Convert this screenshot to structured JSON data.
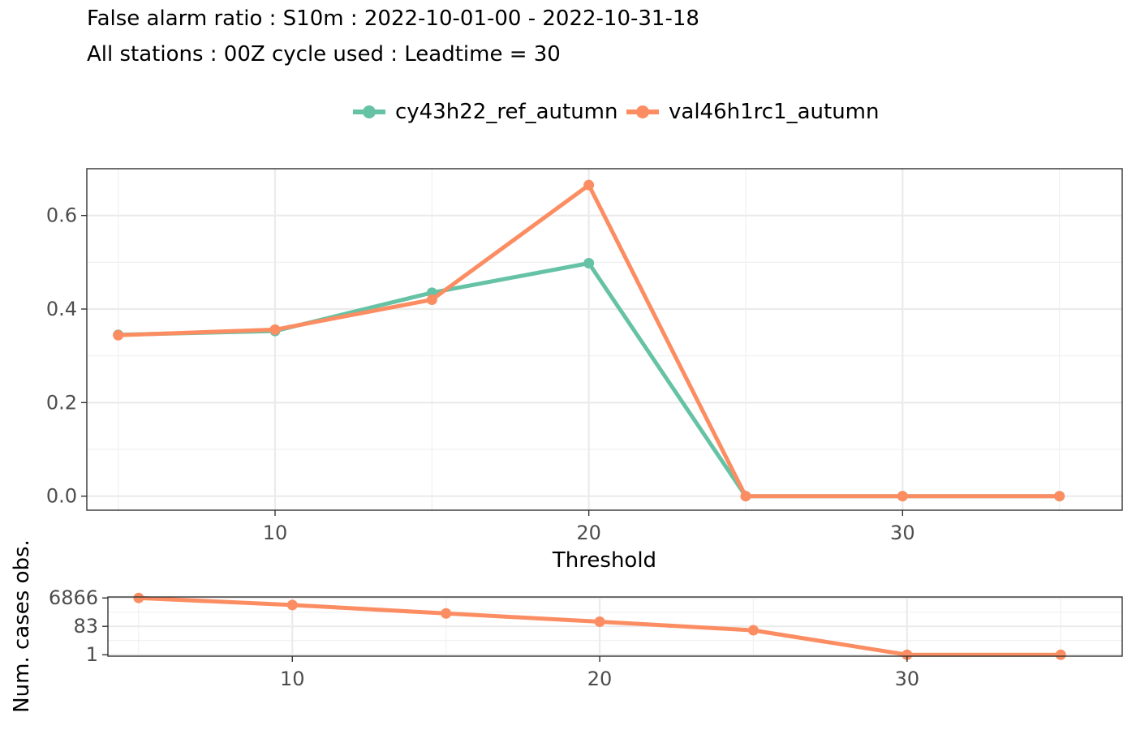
{
  "header": {
    "title": "False alarm ratio : S10m : 2022-10-01-00 - 2022-10-31-18",
    "subtitle": "All stations : 00Z cycle used : Leadtime = 30"
  },
  "legend": [
    {
      "name": "cy43h22_ref_autumn",
      "color": "#66C2A5"
    },
    {
      "name": "val46h1rc1_autumn",
      "color": "#FC8D62"
    }
  ],
  "chart_data": [
    {
      "type": "line",
      "title": "False alarm ratio : S10m : 2022-10-01-00 - 2022-10-31-18",
      "subtitle": "All stations : 00Z cycle used : Leadtime = 30",
      "xlabel": "Threshold",
      "ylabel": "",
      "xlim": [
        4,
        37
      ],
      "ylim": [
        -0.03,
        0.7
      ],
      "xticks": [
        10,
        20,
        30
      ],
      "xtick_labels": [
        "10",
        "20",
        "30"
      ],
      "yticks": [
        0,
        0.2,
        0.4,
        0.6
      ],
      "ytick_labels": [
        "0.0",
        "0.2",
        "0.4",
        "0.6"
      ],
      "grid": true,
      "legend_position": "top",
      "x": [
        5,
        10,
        15,
        20,
        25,
        30,
        35
      ],
      "series": [
        {
          "name": "cy43h22_ref_autumn",
          "color": "#66C2A5",
          "values": [
            0.345,
            0.353,
            0.435,
            0.498,
            0.0,
            0.0,
            0.0
          ]
        },
        {
          "name": "val46h1rc1_autumn",
          "color": "#FC8D62",
          "values": [
            0.344,
            0.356,
            0.42,
            0.665,
            0.0,
            0.0,
            0.0
          ]
        }
      ]
    },
    {
      "type": "line",
      "xlabel": "",
      "ylabel": "Num. cases obs.",
      "scale_y": "log",
      "xlim": [
        4,
        37
      ],
      "ylim": [
        0.8,
        8000
      ],
      "xticks": [
        10,
        20,
        30
      ],
      "xtick_labels": [
        "10",
        "20",
        "30"
      ],
      "yticks": [
        1,
        83,
        6866
      ],
      "ytick_labels": [
        "1",
        "83",
        "6866"
      ],
      "grid": true,
      "x": [
        5,
        10,
        15,
        20,
        25,
        30,
        35
      ],
      "series": [
        {
          "name": "val46h1rc1_autumn",
          "color": "#FC8D62",
          "values": [
            6866,
            2300,
            620,
            170,
            45,
            1,
            1
          ]
        }
      ]
    }
  ]
}
